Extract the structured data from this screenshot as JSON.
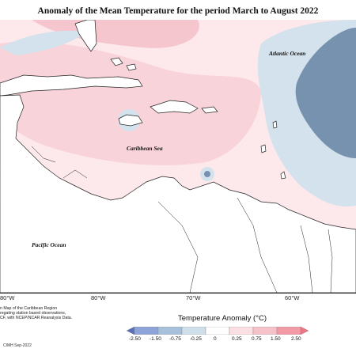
{
  "title": "Anomaly of the Mean Temperature for the period March to August 2022",
  "labels": {
    "atlantic": "Atlantic Ocean",
    "caribbean": "Caribbean Sea",
    "pacific": "Pacific Ocean"
  },
  "ticks": [
    "80°W",
    "80°W",
    "70°W",
    "60°W"
  ],
  "notes": {
    "line1": "n Map of the Caribbean Region",
    "line2": "regating station based observations,",
    "line3": "CF, with NCEP/NCAR Reanalysis Data."
  },
  "legend": {
    "title": "Temperature Anomaly (°C)",
    "labels": [
      "-2.50",
      "-1.50",
      "-0.75",
      "-0.25",
      "0",
      "0.25",
      "0.75",
      "1.50",
      "2.50"
    ],
    "colors": [
      "#5a6fb5",
      "#8ea3d8",
      "#a9c0dc",
      "#cfdfea",
      "#ffffff",
      "#fbe0e3",
      "#f6c2c9",
      "#f29aa5",
      "#f07583"
    ]
  },
  "credit": "CIMH Sep-2022",
  "map_colors": {
    "ocean_base": "#fde9ec",
    "warm": "#f7cfd6",
    "cool_light": "#d3e2ec",
    "cool_dark": "#7792ae"
  }
}
